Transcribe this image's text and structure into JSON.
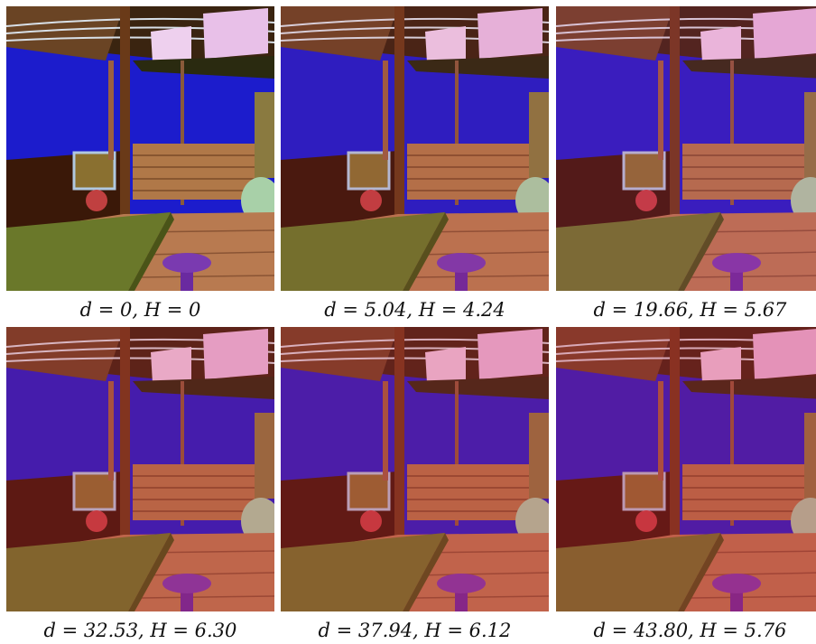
{
  "figure": {
    "panels": [
      {
        "caption": "d = 0, H = 0"
      },
      {
        "caption": "d = 5.04, H = 4.24"
      },
      {
        "caption": "d = 19.66, H = 5.67"
      },
      {
        "caption": "d = 32.53, H = 6.30"
      },
      {
        "caption": "d = 37.94, H = 6.12"
      },
      {
        "caption": "d = 43.80, H = 5.76"
      }
    ]
  }
}
